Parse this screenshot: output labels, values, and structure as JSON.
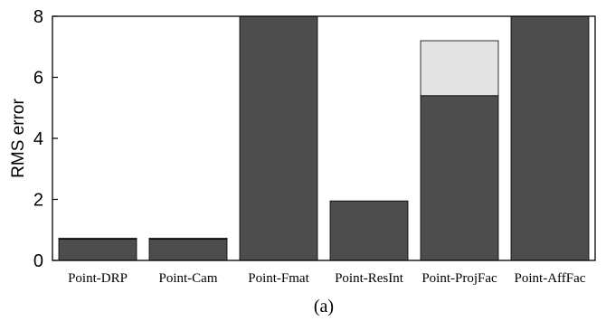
{
  "chart_data": {
    "type": "bar",
    "categories": [
      "Point-DRP",
      "Point-Cam",
      "Point-Fmat",
      "Point-ResInt",
      "Point-ProjFac",
      "Point-AffFac"
    ],
    "series": [
      {
        "values": [
          0.7,
          0.7,
          8,
          1.95,
          5.4,
          8
        ]
      },
      {
        "values": [
          0.03,
          0.03,
          0,
          0,
          1.8,
          0
        ]
      }
    ],
    "colors": [
      "#4d4d4d",
      "#e3e3e3"
    ],
    "ylabel": "RMS error",
    "xlabel": "",
    "ylim": [
      0,
      8
    ],
    "yticks": [
      0,
      2,
      4,
      6,
      8
    ],
    "grid": false,
    "caption": "(a)"
  }
}
